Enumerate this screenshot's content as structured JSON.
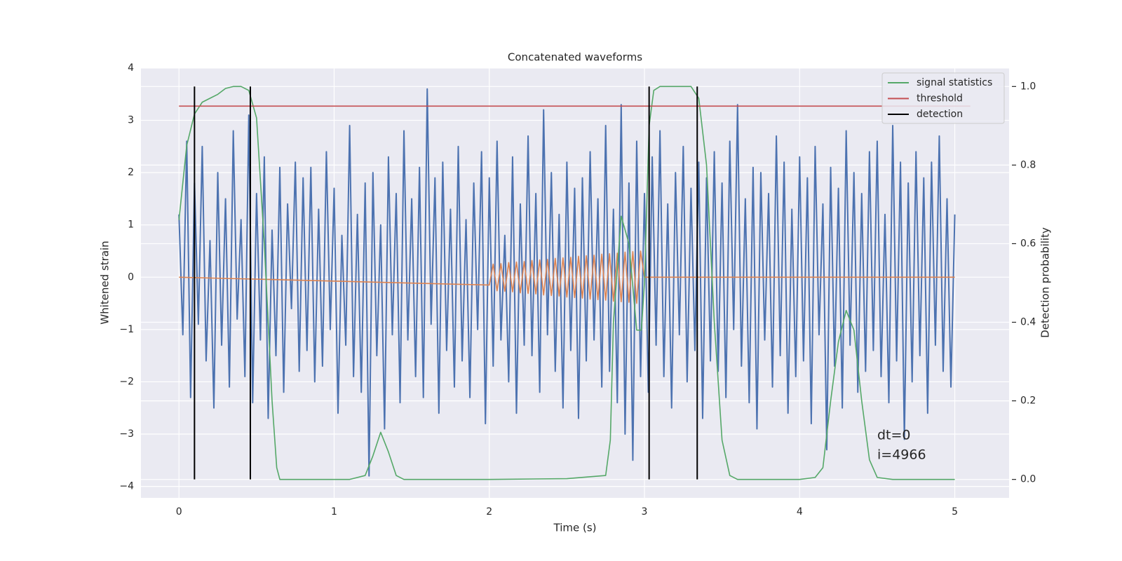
{
  "chart_data": {
    "type": "line",
    "title": "Concatenated waveforms",
    "xlabel": "Time (s)",
    "ylabel": "Whitened strain",
    "y2label": "Detection probability",
    "annotations": [
      "dt=0",
      "i=4966"
    ],
    "grid": true,
    "legend": "upper right",
    "xlim": [
      -0.245,
      5.35
    ],
    "ylim": [
      -4.22,
      4.0
    ],
    "y2lim": [
      -0.047,
      1.047
    ],
    "xticks": [
      0,
      1,
      2,
      3,
      4,
      5
    ],
    "yticks": [
      {
        "value": -4,
        "label": "−4"
      },
      {
        "value": -3,
        "label": "−3"
      },
      {
        "value": -2,
        "label": "−2"
      },
      {
        "value": -1,
        "label": "−1"
      },
      0,
      1,
      2,
      3,
      4
    ],
    "y2ticks": [
      {
        "value": 0,
        "label": "0.0"
      },
      0.2,
      0.4,
      0.6,
      0.8,
      {
        "value": 1,
        "label": "1.0"
      }
    ],
    "series": [
      {
        "color": "#4c72b0",
        "axis": "y",
        "x": [
          0,
          0.025,
          0.05,
          0.075,
          0.1,
          0.125,
          0.15,
          0.175,
          0.2,
          0.225,
          0.25,
          0.275,
          0.3,
          0.325,
          0.35,
          0.375,
          0.4,
          0.425,
          0.45,
          0.475,
          0.5,
          0.525,
          0.55,
          0.575,
          0.6,
          0.625,
          0.65,
          0.675,
          0.7,
          0.725,
          0.75,
          0.775,
          0.8,
          0.825,
          0.85,
          0.875,
          0.9,
          0.925,
          0.95,
          0.975,
          1,
          1.025,
          1.05,
          1.075,
          1.1,
          1.125,
          1.15,
          1.175,
          1.2,
          1.225,
          1.25,
          1.275,
          1.3,
          1.325,
          1.35,
          1.375,
          1.4,
          1.425,
          1.45,
          1.475,
          1.5,
          1.525,
          1.55,
          1.575,
          1.6,
          1.625,
          1.65,
          1.675,
          1.7,
          1.725,
          1.75,
          1.775,
          1.8,
          1.825,
          1.85,
          1.875,
          1.9,
          1.925,
          1.95,
          1.975,
          2,
          2.025,
          2.05,
          2.075,
          2.1,
          2.125,
          2.15,
          2.175,
          2.2,
          2.225,
          2.25,
          2.275,
          2.3,
          2.325,
          2.35,
          2.375,
          2.4,
          2.425,
          2.45,
          2.475,
          2.5,
          2.525,
          2.55,
          2.575,
          2.6,
          2.625,
          2.65,
          2.675,
          2.7,
          2.725,
          2.75,
          2.775,
          2.8,
          2.825,
          2.85,
          2.875,
          2.9,
          2.925,
          2.95,
          2.975,
          3,
          3.025,
          3.05,
          3.075,
          3.1,
          3.125,
          3.15,
          3.175,
          3.2,
          3.225,
          3.25,
          3.275,
          3.3,
          3.325,
          3.35,
          3.375,
          3.4,
          3.425,
          3.45,
          3.475,
          3.5,
          3.525,
          3.55,
          3.575,
          3.6,
          3.625,
          3.65,
          3.675,
          3.7,
          3.725,
          3.75,
          3.775,
          3.8,
          3.825,
          3.85,
          3.875,
          3.9,
          3.925,
          3.95,
          3.975,
          4,
          4.025,
          4.05,
          4.075,
          4.1,
          4.125,
          4.15,
          4.175,
          4.2,
          4.225,
          4.25,
          4.275,
          4.3,
          4.325,
          4.35,
          4.375,
          4.4,
          4.425,
          4.45,
          4.475,
          4.5,
          4.525,
          4.55,
          4.575,
          4.6,
          4.625,
          4.65,
          4.675,
          4.7,
          4.725,
          4.75,
          4.775,
          4.8,
          4.825,
          4.85,
          4.875,
          4.9,
          4.925,
          4.95,
          4.975,
          5
        ],
        "values": [
          1.2,
          -1.1,
          2.6,
          -2.3,
          1.8,
          -0.9,
          2.5,
          -1.6,
          0.7,
          -2.5,
          2.0,
          -1.3,
          1.5,
          -2.1,
          2.8,
          -0.8,
          1.1,
          -1.9,
          3.1,
          -2.4,
          1.6,
          -1.2,
          2.3,
          -2.7,
          0.9,
          -1.5,
          2.1,
          -2.2,
          1.4,
          -0.6,
          2.2,
          -1.8,
          1.9,
          -1.4,
          2.1,
          -2.0,
          1.3,
          -1.7,
          2.4,
          -1.0,
          1.7,
          -2.6,
          0.8,
          -1.3,
          2.9,
          -1.9,
          1.2,
          -2.2,
          1.8,
          -3.8,
          2.0,
          -1.5,
          1.0,
          -2.9,
          2.3,
          -1.1,
          1.6,
          -2.4,
          2.8,
          -1.2,
          1.5,
          -1.9,
          2.1,
          -2.3,
          3.6,
          -0.9,
          1.9,
          -2.6,
          2.2,
          -1.4,
          1.3,
          -2.1,
          2.5,
          -1.6,
          1.1,
          -2.3,
          1.8,
          -1.0,
          2.4,
          -2.8,
          1.9,
          -1.7,
          2.6,
          -1.2,
          0.8,
          -2.0,
          2.3,
          -2.6,
          1.4,
          -1.3,
          2.7,
          -1.5,
          1.6,
          -2.2,
          3.2,
          -1.1,
          2.0,
          -1.8,
          1.2,
          -2.5,
          2.2,
          -1.4,
          1.7,
          -2.7,
          1.9,
          -1.6,
          2.4,
          -1.2,
          1.5,
          -2.1,
          2.9,
          -1.8,
          1.3,
          -2.4,
          3.3,
          -3.0,
          1.8,
          -3.5,
          2.6,
          -1.9,
          1.6,
          -2.2,
          2.3,
          -1.3,
          2.8,
          -1.9,
          1.4,
          -2.5,
          2.0,
          -1.1,
          2.5,
          -2.0,
          1.7,
          -1.4,
          2.2,
          -2.7,
          1.9,
          -1.6,
          2.4,
          -1.8,
          1.8,
          -2.3,
          2.6,
          -1.0,
          3.3,
          -1.7,
          1.5,
          -2.4,
          2.1,
          -2.9,
          2.0,
          -1.2,
          1.6,
          -2.1,
          2.7,
          -1.5,
          2.2,
          -2.6,
          1.3,
          -1.9,
          2.3,
          -1.6,
          1.9,
          -2.8,
          2.5,
          -1.1,
          1.4,
          -3.3,
          2.1,
          -1.7,
          1.7,
          -2.5,
          2.8,
          -1.3,
          2.0,
          -2.2,
          1.6,
          -1.8,
          2.4,
          -1.4,
          2.6,
          -1.9,
          1.2,
          -2.4,
          2.9,
          -1.6,
          2.2,
          -3.1,
          1.8,
          -2.0,
          2.4,
          -1.5,
          1.9,
          -2.6,
          2.2,
          -1.3,
          2.7,
          -1.8,
          1.5,
          -2.1,
          1.2
        ]
      },
      {
        "color": "#dd8452",
        "axis": "y",
        "x": [
          0,
          2,
          2.025,
          2.05,
          2.075,
          2.1,
          2.125,
          2.15,
          2.175,
          2.2,
          2.225,
          2.25,
          2.275,
          2.3,
          2.325,
          2.35,
          2.375,
          2.4,
          2.425,
          2.45,
          2.475,
          2.5,
          2.525,
          2.55,
          2.575,
          2.6,
          2.625,
          2.65,
          2.675,
          2.7,
          2.725,
          2.75,
          2.775,
          2.8,
          2.825,
          2.85,
          2.875,
          2.9,
          2.925,
          2.95,
          2.975,
          3,
          5
        ],
        "values": [
          0,
          -0.15,
          0.25,
          -0.26,
          0.26,
          -0.27,
          0.28,
          -0.28,
          0.29,
          -0.3,
          0.3,
          -0.31,
          0.32,
          -0.32,
          0.33,
          -0.34,
          0.34,
          -0.35,
          0.36,
          -0.36,
          0.37,
          -0.38,
          0.38,
          -0.39,
          0.4,
          -0.4,
          0.41,
          -0.42,
          0.42,
          -0.43,
          0.44,
          -0.44,
          0.45,
          -0.46,
          0.46,
          -0.47,
          0.48,
          -0.48,
          0.49,
          -0.5,
          0.5,
          0,
          0
        ]
      },
      {
        "name": "signal statistics",
        "color": "#55a868",
        "axis": "y2",
        "x": [
          0,
          0.05,
          0.1,
          0.15,
          0.2,
          0.25,
          0.3,
          0.35,
          0.4,
          0.45,
          0.5,
          0.55,
          0.6,
          0.63,
          0.65,
          0.7,
          1.1,
          1.2,
          1.25,
          1.3,
          1.35,
          1.4,
          1.45,
          2,
          2.5,
          2.75,
          2.78,
          2.8,
          2.85,
          2.9,
          2.95,
          2.98,
          3,
          3.03,
          3.06,
          3.1,
          3.3,
          3.35,
          3.4,
          3.45,
          3.5,
          3.55,
          3.6,
          4,
          4.1,
          4.15,
          4.2,
          4.25,
          4.3,
          4.35,
          4.4,
          4.45,
          4.5,
          4.6,
          5
        ],
        "values": [
          0.66,
          0.85,
          0.93,
          0.96,
          0.97,
          0.98,
          0.995,
          1,
          1,
          0.99,
          0.92,
          0.6,
          0.2,
          0.03,
          0,
          0,
          0,
          0.01,
          0.06,
          0.12,
          0.07,
          0.01,
          0,
          0,
          0.002,
          0.01,
          0.1,
          0.4,
          0.67,
          0.6,
          0.38,
          0.38,
          0.5,
          0.9,
          0.99,
          1,
          1,
          0.97,
          0.8,
          0.4,
          0.1,
          0.01,
          0,
          0,
          0.005,
          0.03,
          0.2,
          0.35,
          0.43,
          0.38,
          0.2,
          0.05,
          0.005,
          0,
          0
        ]
      },
      {
        "name": "threshold",
        "color": "#c44e52",
        "axis": "y2",
        "x": [
          0,
          5.1
        ],
        "values": [
          0.95,
          0.95
        ]
      }
    ],
    "vlines": {
      "name": "detection",
      "color": "#000000",
      "x": [
        0.1,
        0.46,
        3.03,
        3.34
      ],
      "ymin": 0,
      "ymax": 1
    }
  }
}
